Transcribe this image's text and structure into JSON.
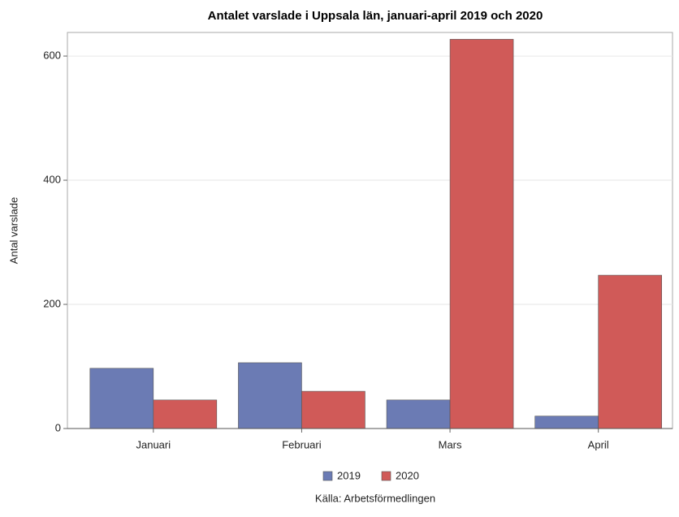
{
  "chart_data": {
    "type": "bar",
    "title": "Antalet varslade i Uppsala län, januari-april 2019 och 2020",
    "y_label": "Antal varslade",
    "source": "Källa: Arbetsförmedlingen",
    "categories": [
      "Januari",
      "Februari",
      "Mars",
      "April"
    ],
    "series": [
      {
        "name": "2019",
        "color": "#6b7bb4",
        "values": [
          97,
          106,
          46,
          20
        ]
      },
      {
        "name": "2020",
        "color": "#d05a58",
        "values": [
          46,
          60,
          627,
          247
        ]
      }
    ],
    "ylim": [
      0,
      638
    ],
    "yticks": [
      0,
      200,
      400,
      600
    ],
    "grid": true,
    "legend": "bottom"
  }
}
